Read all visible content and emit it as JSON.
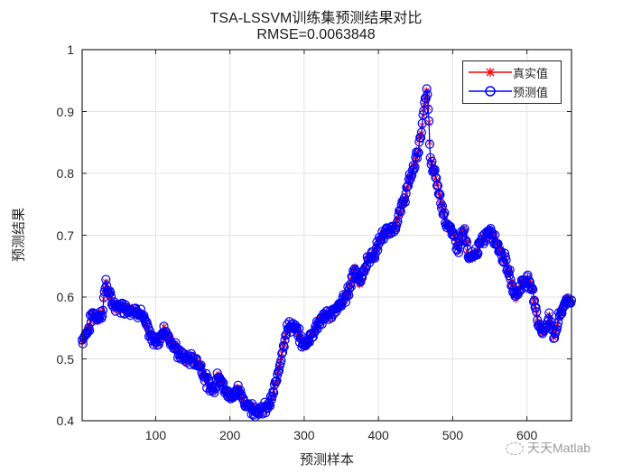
{
  "chart_data": {
    "type": "line",
    "title": "TSA-LSSVM训练集预测结果对比",
    "subtitle": "RMSE=0.0063848",
    "xlabel": "预测样本",
    "ylabel": "预测结果",
    "xlim": [
      1,
      660
    ],
    "ylim": [
      0.4,
      1.0
    ],
    "xticks": [
      100,
      200,
      300,
      400,
      500,
      600
    ],
    "yticks": [
      0.4,
      0.5,
      0.6,
      0.7,
      0.8,
      0.9,
      1
    ],
    "ytick_labels": [
      "0.4",
      "0.5",
      "0.6",
      "0.7",
      "0.8",
      "0.9",
      "1"
    ],
    "grid": true,
    "legend_position": "northeast",
    "series": [
      {
        "name": "真实值",
        "color": "#ff0000",
        "marker": "asterisk"
      },
      {
        "name": "预测值",
        "color": "#0000ff",
        "marker": "circle"
      }
    ],
    "keypoints_x": [
      1,
      10,
      15,
      22,
      28,
      33,
      38,
      45,
      60,
      80,
      95,
      105,
      112,
      120,
      130,
      140,
      150,
      160,
      170,
      178,
      185,
      192,
      200,
      210,
      220,
      230,
      240,
      248,
      255,
      262,
      268,
      275,
      280,
      290,
      300,
      310,
      320,
      330,
      340,
      350,
      360,
      368,
      375,
      385,
      395,
      405,
      415,
      425,
      435,
      445,
      452,
      458,
      462,
      466,
      470,
      478,
      485,
      492,
      500,
      508,
      515,
      522,
      530,
      540,
      550,
      555,
      562,
      570,
      578,
      585,
      592,
      600,
      608,
      615,
      622,
      630,
      636,
      642,
      650,
      660
    ],
    "keypoints_y": [
      0.53,
      0.55,
      0.575,
      0.565,
      0.575,
      0.625,
      0.6,
      0.585,
      0.583,
      0.575,
      0.53,
      0.53,
      0.55,
      0.53,
      0.51,
      0.5,
      0.5,
      0.49,
      0.46,
      0.45,
      0.48,
      0.45,
      0.44,
      0.45,
      0.43,
      0.42,
      0.415,
      0.42,
      0.43,
      0.46,
      0.5,
      0.54,
      0.555,
      0.545,
      0.52,
      0.54,
      0.56,
      0.57,
      0.575,
      0.59,
      0.61,
      0.65,
      0.62,
      0.66,
      0.67,
      0.7,
      0.705,
      0.72,
      0.76,
      0.8,
      0.83,
      0.87,
      0.91,
      0.935,
      0.82,
      0.79,
      0.75,
      0.72,
      0.7,
      0.68,
      0.71,
      0.66,
      0.67,
      0.69,
      0.71,
      0.7,
      0.68,
      0.66,
      0.63,
      0.6,
      0.62,
      0.63,
      0.61,
      0.56,
      0.54,
      0.57,
      0.535,
      0.56,
      0.59,
      0.595
    ],
    "rmse": 0.0063848
  },
  "legend": {
    "items": [
      {
        "label": "真实值",
        "color": "#ff0000"
      },
      {
        "label": "预测值",
        "color": "#0000ff"
      }
    ]
  },
  "watermark": {
    "text": "天天Matlab"
  }
}
